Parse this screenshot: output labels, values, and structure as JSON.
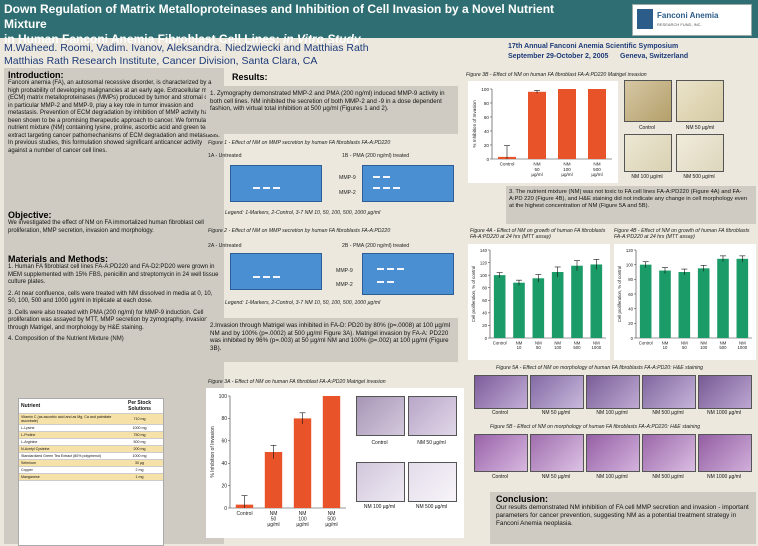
{
  "header": {
    "title_line1": "Down Regulation of Matrix Metalloproteinases and Inhibition of Cell Invasion by a Novel Nutrient Mixture",
    "title_line2": "in Human Fanconi Anemia Fibroblast Cell Lines:",
    "title_line2_italic": "in Vitro Study",
    "logo_text": "Fanconi Anemia",
    "logo_sub": "RESEARCH FUND, INC."
  },
  "authors": {
    "names": "M.Waheed. Roomi, Vadim. Ivanov, Aleksandra. Niedzwiecki and Matthias Rath",
    "affiliation": "Matthias Rath Research Institute, Cancer Division, Santa Clara, CA"
  },
  "symposium": {
    "line1": "17th Annual Fanconi Anemia Scientific Symposium",
    "line2": "September 29-October 2, 2005      Geneva, Switzerland"
  },
  "intro": {
    "heading": "Introduction:",
    "body": "Fanconi anemia (FA), an autosomal recessive disorder, is characterized by a high probability of developing malignancies at an early age. Extracellular matrix (ECM) matrix metalloproteinases (MMPs) produced by tumor and stromal cells, in particular MMP-2 and MMP-9, play a key role in tumor invasion and metastasis. Prevention of ECM degradation by inhibition of MMP activity has been shown to be a promising therapeutic approach to cancer. We formulated a nutrient mixture (NM) containing lysine, proline, ascorbic acid and green tea extract targeting cancer pathomechanisms of ECM degradation and metastasis. In previous studies, this formulation showed significant anticancer activity against a number of cancer cell lines."
  },
  "objective": {
    "heading": "Objective:",
    "body": "We investigated the effect of NM on FA immortalized human fibroblast cell proliferation, MMP secretion, invasion and morphology."
  },
  "methods": {
    "heading": "Materials and Methods:",
    "items": [
      "1. Human FA fibroblast cell lines FA-A:PD220 and FA-D2:PD20 were grown in MEM supplemented with 15% FBS, penicillin and streptomycin in 24 well tissue culture plates.",
      "2. At near confluence, cells were treated with NM dissolved in media at 0, 10, 50, 100, 500 and 1000 µg/ml in triplicate at each dose.",
      "3. Cells were also treated with PMA (200 ng/ml) for MMP-9 induction. Cell proliferation was assayed by MTT, MMP secretion by zymography, invasion through Matrigel, and morphology by H&E staining.",
      "4. Composition of the Nutrient Mixture (NM)"
    ]
  },
  "composition": {
    "col1": "Nutrient",
    "col2": "Per Stock Solutions",
    "rows": [
      [
        "Vitamin C (as ascorbic acid and as Mg, Ca and palmitate ascorbate)",
        "710 mg"
      ],
      [
        "L-Lysine",
        "1000 mg"
      ],
      [
        "L-Proline",
        "750 mg"
      ],
      [
        "L-Arginine",
        "500 mg"
      ],
      [
        "N-Acetyl Cysteine",
        "200 mg"
      ],
      [
        "Standardized Green Tea Extract (80% polyphenol)",
        "1000 mg"
      ],
      [
        "Selenium",
        "30 µg"
      ],
      [
        "Copper",
        "2 mg"
      ],
      [
        "Manganese",
        "1 mg"
      ]
    ]
  },
  "results": {
    "heading": "Results:",
    "p1": "1. Zymography demonstrated MMP-2 and PMA (200 ng/ml) induced MMP-9 activity in both cell lines. NM inhibited the secretion of both MMP-2 and -9 in a dose dependent fashion, with virtual total inhibition at 500 µg/ml (Figures 1 and 2).",
    "fig1_cap": "Figure 1 - Effect of NM on MMP secretion by human FA fibroblasts FA-A:PD220",
    "fig1_a": "1A - Untreated",
    "fig1_b": "1B - PMA (200 ng/ml) treated",
    "fig1_legend": "Legend: 1-Markers, 2-Control, 3-7 NM 10, 50, 100, 500, 1000 µg/ml",
    "fig2_cap": "Figure 2 - Effect of NM on MMP secretion by human FA fibroblasts FA-A:PD220",
    "fig2_a": "2A - Untreated",
    "fig2_b": "2B - PMA (200 ng/ml) treated",
    "fig2_legend": "Legend: 1-Markers, 2-Control, 3-7 NM 10, 50, 100, 500, 1000 µg/ml",
    "mmp9": "MMP-9",
    "mmp2": "MMP-2",
    "p2": "2.Invasion through Matrigel was inhibited in FA-D: PD20 by 80% (p=.0008) at 100 µg/ml NM and by 100% (p=.0002) at 500 µg/ml Figure 3A). Matrigel invasion by FA-A: PD220 was inhibited by 96% (p=.003) at 50 µg/ml NM and 100% (p=.002) at 100 µg/ml (Figure 3B).",
    "fig3a_cap": "Figure 3A - Effect of NM on human FA fibroblast FA-A:PD20 Matrigel invasion",
    "fig3b_cap": "Figure 3B - Effect of NM on human FA fibroblast FA-A:PD220 Matrigel invasion",
    "p3": "3. The nutrient mixture (NM) was not toxic to FA cell lines FA-A:PD220 (Figure 4A) and FA-A:PD 220 (Figure 4B), and H&E staining did not indicate any change in cell morphology  even at the highest concentration of NM (Figure 5A and 5B).",
    "fig4a_cap": "Figure 4A - Effect of NM on growth of human FA fibroblasts FA-A:PD220 at 24 hrs (MTT assay)",
    "fig4b_cap": "Figure 4B - Effect of NM on growth of human FA fibroblasts FA-A:PD220 at 24 hrs (MTT assay)",
    "fig5a_cap": "Figure 5A - Effect of NM on morphology of human FA fibroblasts FA-A:PD20: H&E staining",
    "fig5b_cap": "Figure 5B - Effect of NM on morphology of human FA fibroblasts FA-A:PD220: H&E staining",
    "micro_labels_3a": [
      "Control",
      "NM 50 µg/ml",
      "NM 100 µg/ml",
      "NM 500 µg/ml"
    ],
    "micro_labels_3b": [
      "Control",
      "NM 50 µg/ml",
      "NM 100 µg/ml",
      "NM 500 µg/ml"
    ],
    "micro_labels_5": [
      "Control",
      "NM 50 µg/ml",
      "NM 100 µg/ml",
      "NM 500 µg/ml",
      "NM 1000 µg/ml"
    ]
  },
  "conclusion": {
    "heading": "Conclusion:",
    "body": "Our results demonstrated NM inhibition of FA cell MMP secretion and invasion  - important parameters for cancer prevention, suggesting NM as a potential treatment strategy in Fanconi Anemia neoplasia."
  },
  "chart_data": [
    {
      "id": "fig3a",
      "type": "bar",
      "categories": [
        "Control",
        "NM 50 µg/ml",
        "NM 100 µg/ml",
        "NM 500 µg/ml"
      ],
      "values": [
        3,
        50,
        80,
        100
      ],
      "errors": [
        8,
        6,
        5,
        0
      ],
      "ylabel": "% Inhibition of Invasion",
      "ylim": [
        0,
        100
      ],
      "yticks": [
        0,
        20,
        40,
        60,
        80,
        100
      ],
      "color": "#e8532a"
    },
    {
      "id": "fig3b",
      "type": "bar",
      "categories": [
        "Control",
        "NM 50 µg/ml",
        "NM 100 µg/ml",
        "NM 500 µg/ml"
      ],
      "values": [
        3,
        96,
        100,
        100
      ],
      "errors": [
        16,
        2,
        0,
        0
      ],
      "ylabel": "% Inhibition of Invasion",
      "ylim": [
        0,
        100
      ],
      "yticks": [
        0,
        20,
        40,
        60,
        80,
        100
      ],
      "color": "#e8532a"
    },
    {
      "id": "fig4a",
      "type": "bar",
      "categories": [
        "Control",
        "NM 10",
        "NM 50",
        "NM 100",
        "NM 500",
        "NM 1000"
      ],
      "values": [
        100,
        88,
        95,
        105,
        115,
        117
      ],
      "errors": [
        4,
        4,
        6,
        8,
        8,
        8
      ],
      "ylabel": "Cell proliferation, % of control",
      "ylim": [
        0,
        140
      ],
      "yticks": [
        0,
        20,
        40,
        60,
        80,
        100,
        120,
        140
      ],
      "color": "#1a9b67"
    },
    {
      "id": "fig4b",
      "type": "bar",
      "categories": [
        "Control",
        "NM 10",
        "NM 50",
        "NM 100",
        "NM 500",
        "NM 1000"
      ],
      "values": [
        100,
        92,
        90,
        95,
        108,
        108
      ],
      "errors": [
        4,
        4,
        4,
        4,
        4,
        4
      ],
      "ylabel": "Cell proliferation, % of control",
      "ylim": [
        0,
        120
      ],
      "yticks": [
        0,
        20,
        40,
        60,
        80,
        100,
        120
      ],
      "color": "#1a9b67"
    }
  ]
}
